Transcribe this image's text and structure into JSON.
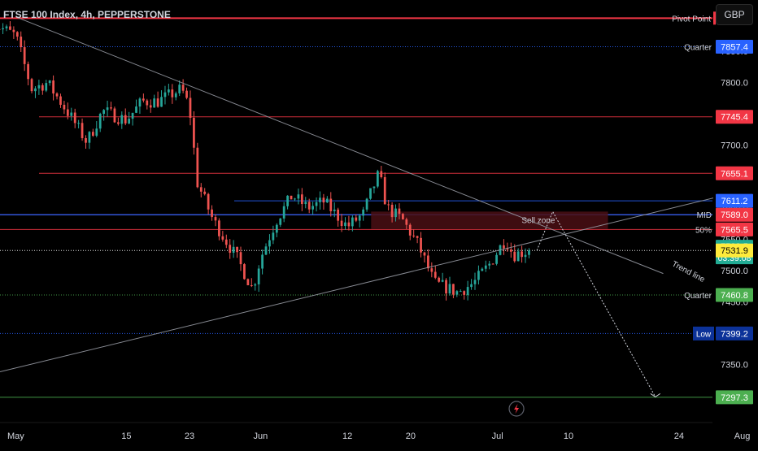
{
  "symbol": {
    "title": "FTSE 100 Index, 4h, PEPPERSTONE",
    "currency": "GBP"
  },
  "colors": {
    "background": "#000000",
    "up": "#26a69a",
    "down": "#ef5350",
    "red_level": "#f23645",
    "blue_level": "#2962ff",
    "green_level": "#4caf50",
    "yellow_label": "#ffeb3b",
    "navy_label": "#0c3299",
    "teal_label": "#22ab94",
    "zone_fill": "#4a0f14",
    "text": "#d1d4dc"
  },
  "chart_data": {
    "type": "candlestick",
    "title": "FTSE 100 Index, 4h, PEPPERSTONE",
    "xlim": [
      "2023-04-29",
      "2023-08-03"
    ],
    "ylim": [
      7218,
      7932
    ],
    "y_ticks": [
      7250.0,
      7300.0,
      7350.0,
      7400.0,
      7450.0,
      7500.0,
      7550.0,
      7600.0,
      7650.0,
      7700.0,
      7750.0,
      7800.0,
      7850.0,
      7900.0
    ],
    "x_ticks": [
      {
        "label": "May",
        "date": "2023-05-01"
      },
      {
        "label": "15",
        "date": "2023-05-15"
      },
      {
        "label": "23",
        "date": "2023-05-23"
      },
      {
        "label": "Jun",
        "date": "2023-06-01"
      },
      {
        "label": "12",
        "date": "2023-06-12"
      },
      {
        "label": "20",
        "date": "2023-06-20"
      },
      {
        "label": "Jul",
        "date": "2023-07-01"
      },
      {
        "label": "10",
        "date": "2023-07-10"
      },
      {
        "label": "24",
        "date": "2023-07-24"
      },
      {
        "label": "Aug",
        "date": "2023-08-01"
      }
    ],
    "price_anchors": [
      {
        "date": "2023-04-28",
        "price": 7895
      },
      {
        "date": "2023-05-01",
        "price": 7875
      },
      {
        "date": "2023-05-03",
        "price": 7790
      },
      {
        "date": "2023-05-05",
        "price": 7800
      },
      {
        "date": "2023-05-08",
        "price": 7745
      },
      {
        "date": "2023-05-10",
        "price": 7705
      },
      {
        "date": "2023-05-12",
        "price": 7755
      },
      {
        "date": "2023-05-15",
        "price": 7740
      },
      {
        "date": "2023-05-17",
        "price": 7770
      },
      {
        "date": "2023-05-19",
        "price": 7770
      },
      {
        "date": "2023-05-22",
        "price": 7790
      },
      {
        "date": "2023-05-23",
        "price": 7760
      },
      {
        "date": "2023-05-24",
        "price": 7640
      },
      {
        "date": "2023-05-26",
        "price": 7580
      },
      {
        "date": "2023-05-29",
        "price": 7520
      },
      {
        "date": "2023-05-31",
        "price": 7470
      },
      {
        "date": "2023-06-01",
        "price": 7520
      },
      {
        "date": "2023-06-03",
        "price": 7580
      },
      {
        "date": "2023-06-05",
        "price": 7620
      },
      {
        "date": "2023-06-07",
        "price": 7600
      },
      {
        "date": "2023-06-09",
        "price": 7610
      },
      {
        "date": "2023-06-12",
        "price": 7570
      },
      {
        "date": "2023-06-14",
        "price": 7590
      },
      {
        "date": "2023-06-15",
        "price": 7625
      },
      {
        "date": "2023-06-16",
        "price": 7655
      },
      {
        "date": "2023-06-17",
        "price": 7600
      },
      {
        "date": "2023-06-19",
        "price": 7580
      },
      {
        "date": "2023-06-21",
        "price": 7540
      },
      {
        "date": "2023-06-23",
        "price": 7480
      },
      {
        "date": "2023-06-26",
        "price": 7465
      },
      {
        "date": "2023-06-28",
        "price": 7480
      },
      {
        "date": "2023-06-30",
        "price": 7510
      },
      {
        "date": "2023-07-02",
        "price": 7550
      },
      {
        "date": "2023-07-03",
        "price": 7525
      },
      {
        "date": "2023-07-05",
        "price": 7531.9
      }
    ],
    "candle_count": 150,
    "last_price": 7531.9,
    "countdown": "03:39:08",
    "horizontal_levels": [
      {
        "price": 7903,
        "label": "Pivot Point",
        "color": "#f23645",
        "style": "solid"
      },
      {
        "price": 7857.4,
        "label": "Quarter",
        "color": "#2962ff",
        "style": "dotted"
      },
      {
        "price": 7745.4,
        "label": "",
        "color": "#f23645",
        "style": "solid"
      },
      {
        "price": 7655.1,
        "label": "",
        "color": "#f23645",
        "style": "solid"
      },
      {
        "price": 7611.2,
        "label": "",
        "color": "#2962ff",
        "style": "solid"
      },
      {
        "price": 7589.0,
        "label": "MID",
        "color": "#f23645",
        "style": "solid"
      },
      {
        "price": 7565.5,
        "label": "50%",
        "color": "#f23645",
        "style": "solid"
      },
      {
        "price": 7531.9,
        "label": "",
        "color": "#ffffff",
        "style": "dotted"
      },
      {
        "price": 7460.8,
        "label": "Quarter",
        "color": "#4caf50",
        "style": "dotted"
      },
      {
        "price": 7399.2,
        "label": "Low",
        "color": "#2962ff",
        "style": "dotted"
      },
      {
        "price": 7297.3,
        "label": "",
        "color": "#4caf50",
        "style": "solid"
      }
    ],
    "annotations": {
      "sell_zone_label": "Sell zone",
      "sell_zone_range": [
        7566,
        7594
      ],
      "trend_line_label": "Trend line"
    }
  },
  "price_scale_labels": [
    {
      "text": "7857.4",
      "price": 7857.4,
      "color": "#2962ff",
      "side_label": "Quarter"
    },
    {
      "text": "7745.4",
      "price": 7745.4,
      "color": "#f23645",
      "side_label": ""
    },
    {
      "text": "7655.1",
      "price": 7655.1,
      "color": "#f23645",
      "side_label": ""
    },
    {
      "text": "7611.2",
      "price": 7611.2,
      "color": "#2962ff",
      "side_label": ""
    },
    {
      "text": "7589.0",
      "price": 7589.0,
      "color": "#f23645",
      "side_label": "MID"
    },
    {
      "text": "7565.5",
      "price": 7565.5,
      "color": "#f23645",
      "side_label": "50%"
    },
    {
      "text": "7538.5",
      "price": 7538.5,
      "color": "#22ab94",
      "side_label": "",
      "subtext": "03:39:08"
    },
    {
      "text": "7531.9",
      "price": 7531.9,
      "color": "#ffeb3b",
      "side_label": "",
      "dark_text": true
    },
    {
      "text": "7460.8",
      "price": 7460.8,
      "color": "#4caf50",
      "side_label": "Quarter"
    },
    {
      "text": "7399.2",
      "price": 7399.2,
      "color": "#0c3299",
      "side_label": "Low",
      "side_boxed": true
    },
    {
      "text": "7297.3",
      "price": 7297.3,
      "color": "#4caf50",
      "side_label": ""
    }
  ],
  "pivot_label": "Pivot Point",
  "lightning_icon": "lightning-icon"
}
